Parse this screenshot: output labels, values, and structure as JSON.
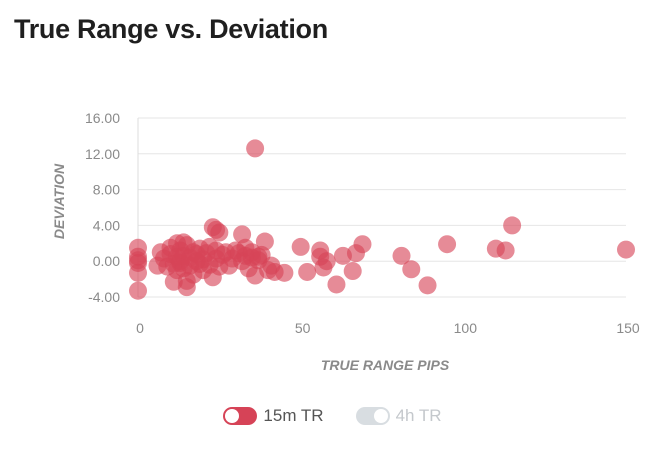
{
  "title": "True Range vs. Deviation",
  "legend": [
    {
      "label": "15m TR",
      "color": "#d64357",
      "active": true
    },
    {
      "label": "4h TR",
      "color": "#d8dde1",
      "active": false
    }
  ],
  "chart_data": {
    "type": "scatter",
    "title": "True Range vs. Deviation",
    "xlabel": "TRUE RANGE PIPS",
    "ylabel": "DEVIATION",
    "xlim": [
      0,
      150
    ],
    "ylim": [
      -4,
      16
    ],
    "xticks": [
      "0",
      "50",
      "100",
      "150"
    ],
    "yticks": [
      "16.00",
      "12.00",
      "8.00",
      "4.00",
      "0.00",
      "-4.00"
    ],
    "grid": "horizontal",
    "legend_position": "bottom-center",
    "series": [
      {
        "name": "15m TR",
        "color": "#d64357",
        "points": [
          [
            0,
            1.5
          ],
          [
            0,
            0.5
          ],
          [
            0,
            -0.2
          ],
          [
            0,
            -1.3
          ],
          [
            0,
            -3.3
          ],
          [
            0,
            0.1
          ],
          [
            6,
            -0.5
          ],
          [
            7,
            1.0
          ],
          [
            8,
            0.3
          ],
          [
            9,
            -0.6
          ],
          [
            10,
            1.5
          ],
          [
            10,
            0.8
          ],
          [
            11,
            -0.3
          ],
          [
            11,
            -2.3
          ],
          [
            12,
            2.0
          ],
          [
            12,
            0.5
          ],
          [
            12,
            -1.0
          ],
          [
            13,
            1.2
          ],
          [
            13,
            -0.2
          ],
          [
            13,
            0.0
          ],
          [
            14,
            2.1
          ],
          [
            14,
            -0.8
          ],
          [
            14,
            0.6
          ],
          [
            15,
            1.8
          ],
          [
            15,
            -2.2
          ],
          [
            15,
            -2.9
          ],
          [
            16,
            0.4
          ],
          [
            16,
            -0.5
          ],
          [
            17,
            1.0
          ],
          [
            17,
            -1.5
          ],
          [
            18,
            0.0
          ],
          [
            18,
            0.8
          ],
          [
            19,
            -0.3
          ],
          [
            19,
            1.4
          ],
          [
            20,
            0.2
          ],
          [
            20,
            -1.0
          ],
          [
            21,
            0.9
          ],
          [
            22,
            -0.4
          ],
          [
            22,
            1.6
          ],
          [
            23,
            -1.8
          ],
          [
            23,
            3.8
          ],
          [
            24,
            3.5
          ],
          [
            24,
            0.3
          ],
          [
            24,
            1.2
          ],
          [
            25,
            -0.6
          ],
          [
            25,
            3.2
          ],
          [
            26,
            0.7
          ],
          [
            27,
            1.0
          ],
          [
            28,
            -0.5
          ],
          [
            29,
            0.3
          ],
          [
            30,
            1.2
          ],
          [
            31,
            0.9
          ],
          [
            32,
            0.0
          ],
          [
            32,
            3.0
          ],
          [
            33,
            0.6
          ],
          [
            33,
            1.5
          ],
          [
            34,
            -0.8
          ],
          [
            35,
            0.4
          ],
          [
            35,
            1.0
          ],
          [
            36,
            -1.6
          ],
          [
            36,
            12.6
          ],
          [
            37,
            0.5
          ],
          [
            37,
            0.1
          ],
          [
            38,
            0.7
          ],
          [
            39,
            2.2
          ],
          [
            40,
            -1.0
          ],
          [
            41,
            -0.5
          ],
          [
            42,
            -1.2
          ],
          [
            45,
            -1.3
          ],
          [
            50,
            1.6
          ],
          [
            52,
            -1.2
          ],
          [
            56,
            1.2
          ],
          [
            56,
            0.5
          ],
          [
            57,
            -0.7
          ],
          [
            58,
            0.0
          ],
          [
            61,
            -2.6
          ],
          [
            63,
            0.6
          ],
          [
            66,
            -1.1
          ],
          [
            67,
            0.9
          ],
          [
            69,
            1.9
          ],
          [
            81,
            0.6
          ],
          [
            84,
            -0.9
          ],
          [
            89,
            -2.7
          ],
          [
            95,
            1.9
          ],
          [
            110,
            1.4
          ],
          [
            113,
            1.2
          ],
          [
            115,
            4.0
          ],
          [
            150,
            1.3
          ]
        ]
      }
    ]
  }
}
